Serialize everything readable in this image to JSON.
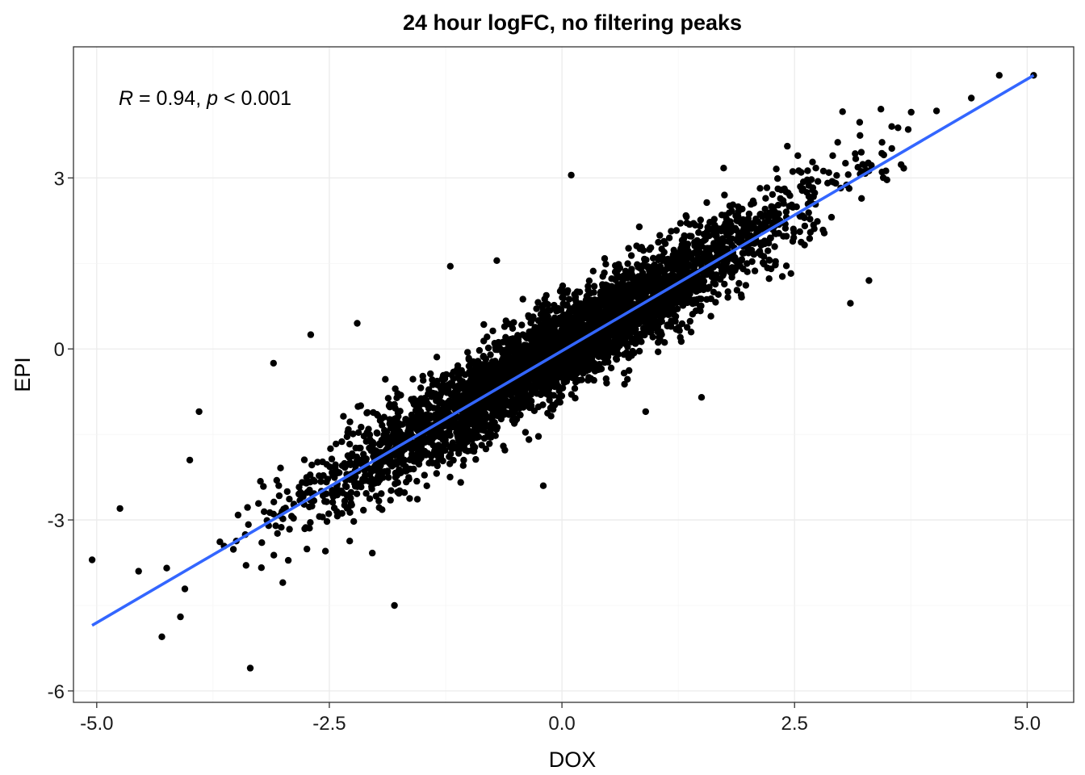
{
  "chart_data": {
    "type": "scatter",
    "title": "24 hour logFC, no filtering peaks",
    "xlabel": "DOX",
    "ylabel": "EPI",
    "xlim": [
      -5.25,
      5.5
    ],
    "ylim": [
      -6.2,
      5.3
    ],
    "x_ticks": [
      -5.0,
      -2.5,
      0.0,
      2.5,
      5.0
    ],
    "x_tick_labels": [
      "-5.0",
      "-2.5",
      "0.0",
      "2.5",
      "5.0"
    ],
    "y_ticks": [
      -6,
      -3,
      0,
      3
    ],
    "y_tick_labels": [
      "-6",
      "-3",
      "0",
      "3"
    ],
    "grid": true,
    "annotation": {
      "r_symbol": "R",
      "r_text": " = 0.94, ",
      "p_symbol": "p",
      "p_text": " < 0.001"
    },
    "correlation_r": 0.94,
    "regression_line": {
      "x": [
        -5.05,
        5.07
      ],
      "y": [
        -4.85,
        4.8
      ]
    },
    "point_color": "#000000",
    "line_color": "#3366ff",
    "outlier_points": [
      {
        "x": -5.05,
        "y": -3.7
      },
      {
        "x": -4.75,
        "y": -2.8
      },
      {
        "x": -4.55,
        "y": -3.9
      },
      {
        "x": -4.3,
        "y": -5.05
      },
      {
        "x": -4.1,
        "y": -4.7
      },
      {
        "x": -3.35,
        "y": -5.6
      },
      {
        "x": -3.1,
        "y": -0.25
      },
      {
        "x": -4.0,
        "y": -1.95
      },
      {
        "x": -3.9,
        "y": -1.1
      },
      {
        "x": -1.8,
        "y": -4.5
      },
      {
        "x": 0.1,
        "y": 3.05
      },
      {
        "x": 4.7,
        "y": 4.8
      },
      {
        "x": 5.07,
        "y": 4.8
      },
      {
        "x": -2.2,
        "y": 0.45
      },
      {
        "x": -1.2,
        "y": 1.45
      },
      {
        "x": -0.7,
        "y": 1.55
      },
      {
        "x": 1.5,
        "y": -0.85
      },
      {
        "x": 0.9,
        "y": -1.1
      },
      {
        "x": -3.0,
        "y": -4.1
      },
      {
        "x": 3.3,
        "y": 1.2
      },
      {
        "x": 4.4,
        "y": 4.4
      },
      {
        "x": 3.1,
        "y": 0.8
      },
      {
        "x": -0.2,
        "y": -2.4
      },
      {
        "x": -2.7,
        "y": 0.25
      }
    ]
  }
}
